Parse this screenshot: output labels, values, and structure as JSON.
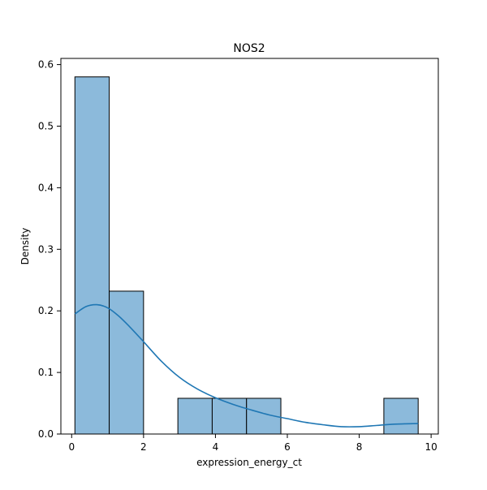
{
  "chart_data": {
    "type": "bar",
    "subtype": "histogram_with_kde",
    "title": "NOS2",
    "xlabel": "expression_energy_ct",
    "ylabel": "Density",
    "xlim": [
      -0.3,
      10.2
    ],
    "ylim": [
      0,
      0.61
    ],
    "xticks": [
      0,
      2,
      4,
      6,
      8,
      10
    ],
    "yticks": [
      0.0,
      0.1,
      0.2,
      0.3,
      0.4,
      0.5,
      0.6
    ],
    "grid": false,
    "legend": "none",
    "bins": [
      {
        "x0": 0.09,
        "x1": 1.045,
        "density": 0.58
      },
      {
        "x0": 1.045,
        "x1": 2.0,
        "density": 0.232
      },
      {
        "x0": 2.0,
        "x1": 2.955,
        "density": 0.0
      },
      {
        "x0": 2.955,
        "x1": 3.91,
        "density": 0.058
      },
      {
        "x0": 3.91,
        "x1": 4.865,
        "density": 0.058
      },
      {
        "x0": 4.865,
        "x1": 5.82,
        "density": 0.058
      },
      {
        "x0": 5.82,
        "x1": 6.775,
        "density": 0.0
      },
      {
        "x0": 6.775,
        "x1": 7.73,
        "density": 0.0
      },
      {
        "x0": 7.73,
        "x1": 8.685,
        "density": 0.0
      },
      {
        "x0": 8.685,
        "x1": 9.64,
        "density": 0.058
      }
    ],
    "kde": {
      "x": [
        0.09,
        0.4,
        0.7,
        1.0,
        1.3,
        1.6,
        2.0,
        2.5,
        3.0,
        3.5,
        4.0,
        4.5,
        5.0,
        5.5,
        6.0,
        6.5,
        7.0,
        7.5,
        8.0,
        8.5,
        9.0,
        9.64
      ],
      "y": [
        0.195,
        0.207,
        0.21,
        0.205,
        0.192,
        0.175,
        0.15,
        0.118,
        0.092,
        0.073,
        0.059,
        0.048,
        0.039,
        0.031,
        0.025,
        0.019,
        0.015,
        0.012,
        0.012,
        0.014,
        0.016,
        0.017
      ]
    },
    "colors": {
      "bar_fill": "#8cbadb",
      "bar_edge": "#000000",
      "kde_line": "#1f77b4",
      "axis": "#000000"
    }
  }
}
